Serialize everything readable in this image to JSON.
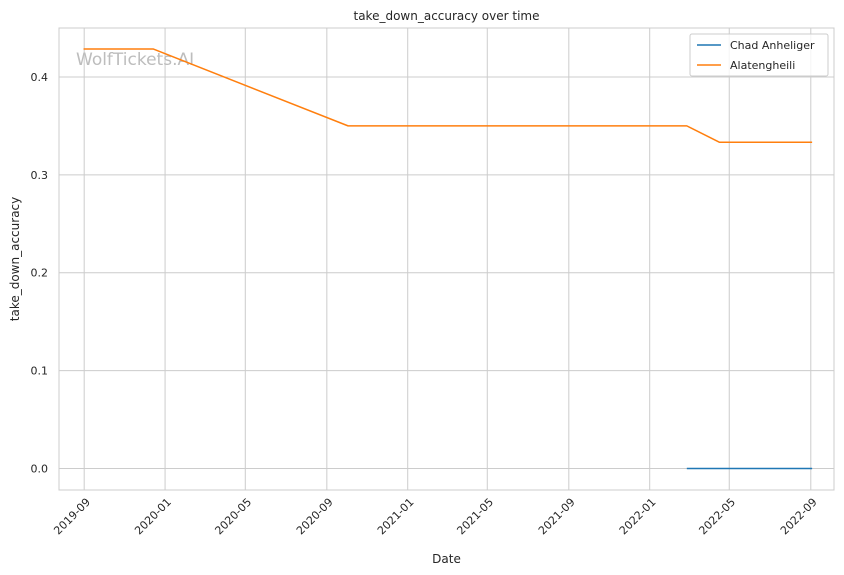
{
  "watermark": "WolfTickets.AI",
  "chart_data": {
    "type": "line",
    "title": "take_down_accuracy over time",
    "xlabel": "Date",
    "ylabel": "take_down_accuracy",
    "ylim": [
      -0.022,
      0.45
    ],
    "xlim": [
      "2019-07-25",
      "2022-10-06"
    ],
    "y_ticks": [
      0.0,
      0.1,
      0.2,
      0.3,
      0.4
    ],
    "y_tick_labels": [
      "0.0",
      "0.1",
      "0.2",
      "0.3",
      "0.4"
    ],
    "x_ticks": [
      "2019-09-01",
      "2020-01-01",
      "2020-05-01",
      "2020-09-01",
      "2021-01-01",
      "2021-05-01",
      "2021-09-01",
      "2022-01-01",
      "2022-05-01",
      "2022-09-01"
    ],
    "x_tick_labels": [
      "2019-09",
      "2020-01",
      "2020-05",
      "2020-09",
      "2021-01",
      "2021-05",
      "2021-09",
      "2022-01",
      "2022-05",
      "2022-09"
    ],
    "grid": true,
    "legend_position": "top-right",
    "series": [
      {
        "name": "Chad Anheliger",
        "color": "#1f77b4",
        "points": [
          {
            "x": "2022-02-26",
            "y": 0.0
          },
          {
            "x": "2022-09-03",
            "y": 0.0
          }
        ]
      },
      {
        "name": "Alatengheili",
        "color": "#ff7f0e",
        "points": [
          {
            "x": "2019-08-31",
            "y": 0.4286
          },
          {
            "x": "2019-12-14",
            "y": 0.4286
          },
          {
            "x": "2020-10-03",
            "y": 0.35
          },
          {
            "x": "2022-02-26",
            "y": 0.35
          },
          {
            "x": "2022-04-16",
            "y": 0.3333
          },
          {
            "x": "2022-09-03",
            "y": 0.3333
          }
        ]
      }
    ]
  }
}
